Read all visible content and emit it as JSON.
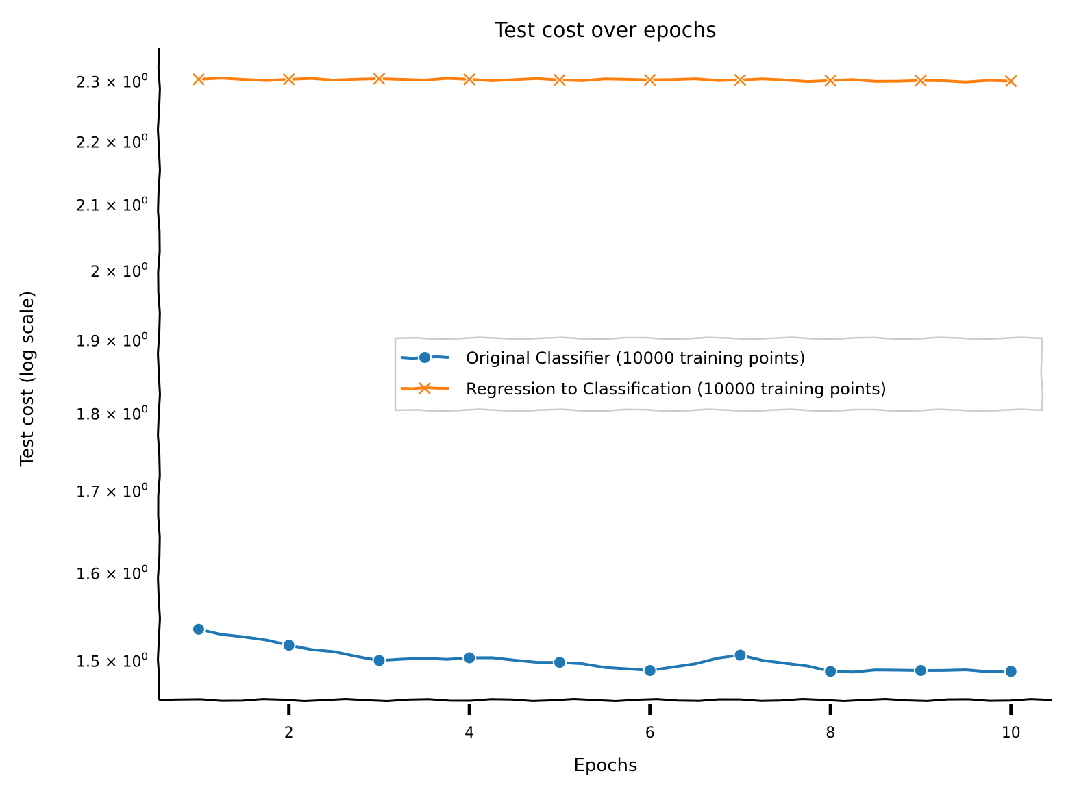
{
  "chart_data": {
    "type": "line",
    "title": "Test cost over epochs",
    "xlabel": "Epochs",
    "ylabel": "Test cost (log scale)",
    "yscale": "log",
    "xlim": [
      0.56,
      10.45
    ],
    "ylim": [
      1.457,
      2.357
    ],
    "grid": false,
    "legend_placement": "center-right",
    "x_ticks": [
      2,
      4,
      6,
      8,
      10
    ],
    "x_tick_labels": [
      "2",
      "4",
      "6",
      "8",
      "10"
    ],
    "y_ticks": [
      1.5,
      1.6,
      1.7,
      1.8,
      1.9,
      2.0,
      2.1,
      2.2,
      2.3
    ],
    "y_tick_labels": [
      "1.5",
      "1.6",
      "1.7",
      "1.8",
      "1.9",
      "2",
      "2.1",
      "2.2",
      "2.3"
    ],
    "y_tick_suffix": "× 10",
    "y_tick_exponent": "0",
    "x": [
      1,
      2,
      3,
      4,
      5,
      6,
      7,
      8,
      9,
      10
    ],
    "series": [
      {
        "name": "Original Classifier (10000 training points)",
        "color": "#1f77b4",
        "marker": "circle",
        "values": [
          1.535,
          1.517,
          1.5,
          1.503,
          1.498,
          1.489,
          1.506,
          1.488,
          1.489,
          1.488
        ]
      },
      {
        "name": "Regression to Classification (10000 training points)",
        "color": "#ff7f0e",
        "marker": "x",
        "values": [
          2.303,
          2.303,
          2.304,
          2.303,
          2.302,
          2.302,
          2.302,
          2.301,
          2.301,
          2.3
        ]
      }
    ]
  }
}
